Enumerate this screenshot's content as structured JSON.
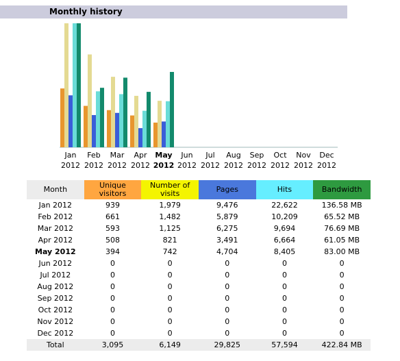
{
  "header": {
    "title": "Monthly history"
  },
  "chart_data": {
    "type": "bar",
    "categories": [
      "Jan 2012",
      "Feb 2012",
      "Mar 2012",
      "Apr 2012",
      "May 2012",
      "Jun 2012",
      "Jul 2012",
      "Aug 2012",
      "Sep 2012",
      "Oct 2012",
      "Nov 2012",
      "Dec 2012"
    ],
    "series": [
      {
        "name": "Unique visitors",
        "color": "#e8962e",
        "header_color": "#ffa640",
        "scale_group": 1,
        "values": [
          939,
          661,
          593,
          508,
          394,
          0,
          0,
          0,
          0,
          0,
          0,
          0
        ],
        "value_labels": [
          "939",
          "661",
          "593",
          "508",
          "394",
          "0",
          "0",
          "0",
          "0",
          "0",
          "0",
          "0"
        ],
        "total": 3095,
        "total_label": "3,095"
      },
      {
        "name": "Number of visits",
        "color": "#e4da92",
        "header_color": "#f4f400",
        "scale_group": 1,
        "values": [
          1979,
          1482,
          1125,
          821,
          742,
          0,
          0,
          0,
          0,
          0,
          0,
          0
        ],
        "value_labels": [
          "1,979",
          "1,482",
          "1,125",
          "821",
          "742",
          "0",
          "0",
          "0",
          "0",
          "0",
          "0",
          "0"
        ],
        "total": 6149,
        "total_label": "6,149"
      },
      {
        "name": "Pages",
        "color": "#3a5ed8",
        "header_color": "#4a78dc",
        "scale_group": 2,
        "values": [
          9476,
          5879,
          6275,
          3491,
          4704,
          0,
          0,
          0,
          0,
          0,
          0,
          0
        ],
        "value_labels": [
          "9,476",
          "5,879",
          "6,275",
          "3,491",
          "4,704",
          "0",
          "0",
          "0",
          "0",
          "0",
          "0",
          "0"
        ],
        "total": 29825,
        "total_label": "29,825"
      },
      {
        "name": "Hits",
        "color": "#6adcd8",
        "header_color": "#66eeff",
        "scale_group": 2,
        "values": [
          22622,
          10209,
          9694,
          6664,
          8405,
          0,
          0,
          0,
          0,
          0,
          0,
          0
        ],
        "value_labels": [
          "22,622",
          "10,209",
          "9,694",
          "6,664",
          "8,405",
          "0",
          "0",
          "0",
          "0",
          "0",
          "0",
          "0"
        ],
        "total": 57594,
        "total_label": "57,594"
      },
      {
        "name": "Bandwidth",
        "color": "#138a6c",
        "header_color": "#2e9a40",
        "scale_group": 3,
        "values": [
          136.58,
          65.52,
          76.69,
          61.05,
          83.0,
          0,
          0,
          0,
          0,
          0,
          0,
          0
        ],
        "value_labels": [
          "136.58 MB",
          "65.52 MB",
          "76.69 MB",
          "61.05 MB",
          "83.00 MB",
          "0",
          "0",
          "0",
          "0",
          "0",
          "0",
          "0"
        ],
        "total": 422.84,
        "total_label": "422.84 MB"
      }
    ]
  },
  "table": {
    "month_header": "Month",
    "total_label": "Total"
  }
}
